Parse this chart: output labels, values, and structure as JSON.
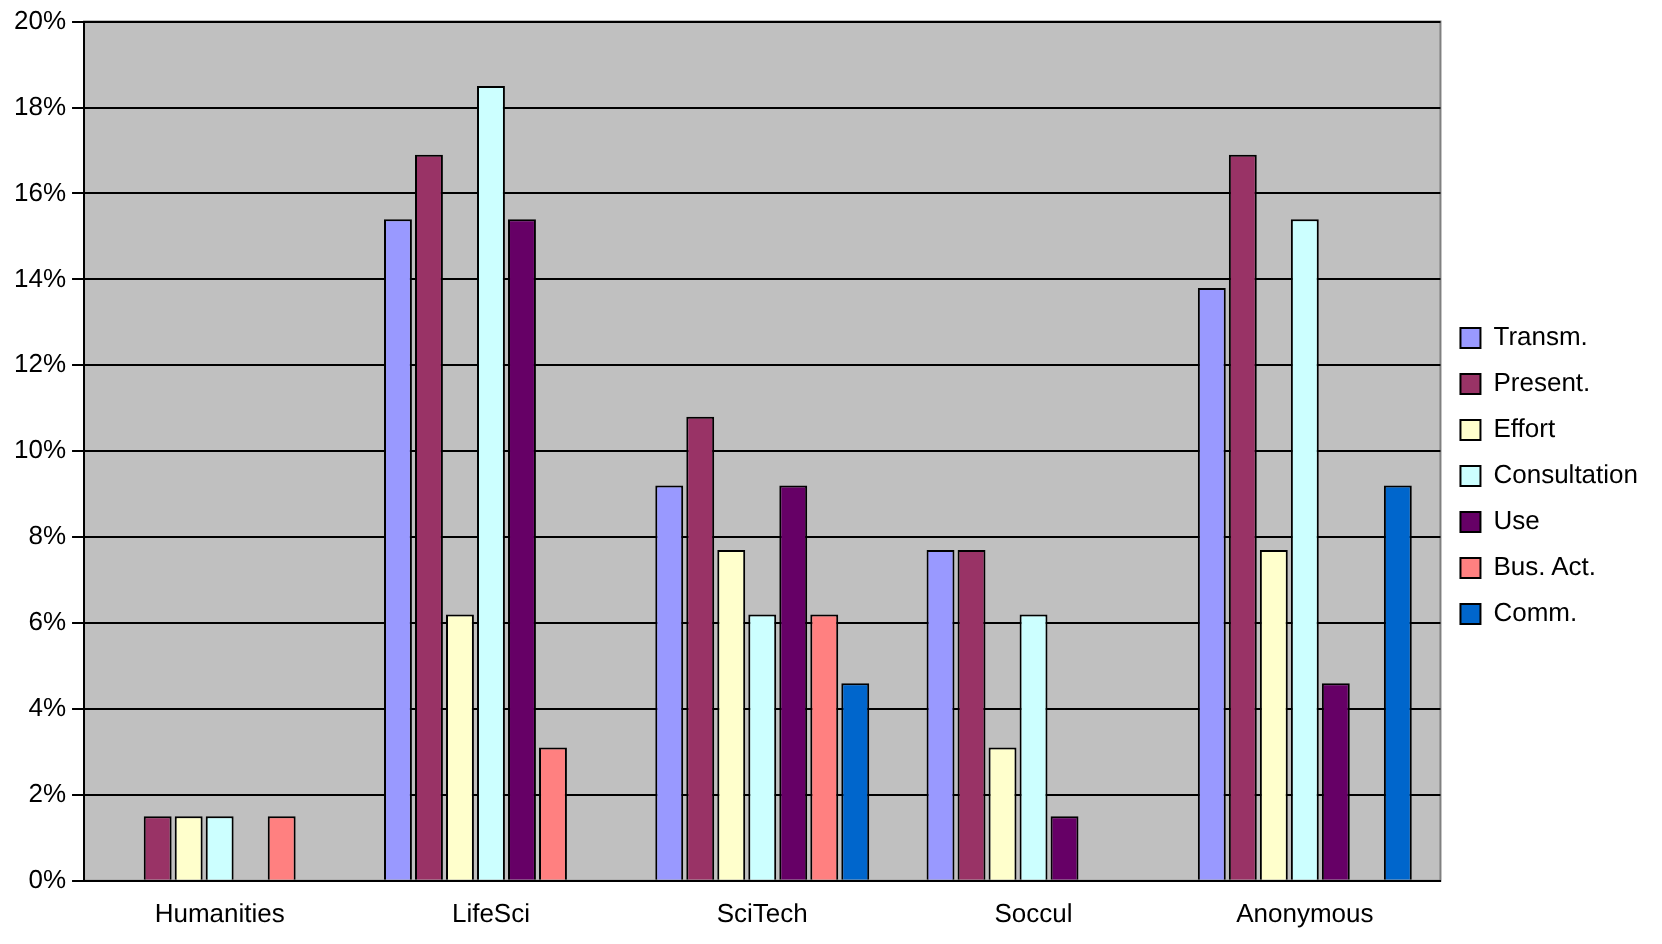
{
  "chart_data": {
    "type": "bar",
    "categories": [
      "Humanities",
      "LifeSci",
      "SciTech",
      "Soccul",
      "Anonymous"
    ],
    "series": [
      {
        "name": "Transm.",
        "color": "#9999ff",
        "values": [
          0,
          15.4,
          9.2,
          7.7,
          13.8
        ]
      },
      {
        "name": "Present.",
        "color": "#993366",
        "values": [
          1.5,
          16.9,
          10.8,
          7.7,
          16.9
        ]
      },
      {
        "name": "Effort",
        "color": "#ffffcc",
        "values": [
          1.5,
          6.2,
          7.7,
          3.1,
          7.7
        ]
      },
      {
        "name": "Consultation",
        "color": "#ccffff",
        "values": [
          1.5,
          18.5,
          6.2,
          6.2,
          15.4
        ]
      },
      {
        "name": "Use",
        "color": "#660066",
        "values": [
          0,
          15.4,
          9.2,
          1.5,
          4.6
        ]
      },
      {
        "name": "Bus. Act.",
        "color": "#ff8080",
        "values": [
          1.5,
          3.1,
          6.2,
          0,
          0
        ]
      },
      {
        "name": "Comm.",
        "color": "#0066cc",
        "values": [
          0,
          0,
          4.6,
          0,
          9.2
        ]
      }
    ],
    "ylim": [
      0,
      20
    ],
    "yticks": [
      {
        "value": 0,
        "label": "0%"
      },
      {
        "value": 2,
        "label": "2%"
      },
      {
        "value": 4,
        "label": "4%"
      },
      {
        "value": 6,
        "label": "6%"
      },
      {
        "value": 8,
        "label": "8%"
      },
      {
        "value": 10,
        "label": "10%"
      },
      {
        "value": 12,
        "label": "12%"
      },
      {
        "value": 14,
        "label": "14%"
      },
      {
        "value": 16,
        "label": "16%"
      },
      {
        "value": 18,
        "label": "18%"
      },
      {
        "value": 20,
        "label": "20%"
      }
    ],
    "grid": "y",
    "legend": "right"
  }
}
